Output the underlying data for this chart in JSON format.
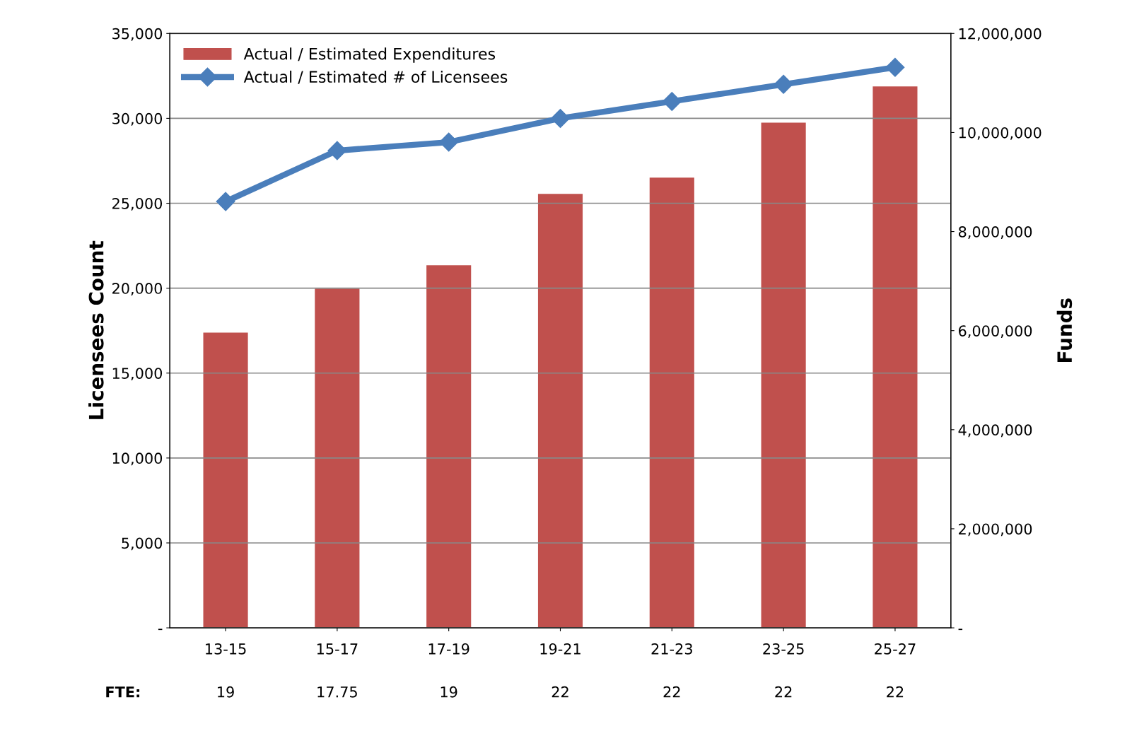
{
  "chart_data": {
    "type": "bar",
    "ylabel": "Licensees Count",
    "y2label": "Funds",
    "categories": [
      "13-15",
      "15-17",
      "17-19",
      "19-21",
      "21-23",
      "23-25",
      "25-27"
    ],
    "series": [
      {
        "name": "Actual / Estimated Expenditures",
        "axis": "y2",
        "color": "#c0504d",
        "values": [
          5960000,
          6850000,
          7320000,
          8760000,
          9090000,
          10200000,
          10930000
        ]
      },
      {
        "name": "Actual / Estimated # of Licensees",
        "type": "line",
        "axis": "y",
        "color": "#4a7ebb",
        "marker": "diamond",
        "values": [
          25100,
          28100,
          28600,
          30000,
          31000,
          32000,
          33000
        ]
      }
    ],
    "ylim": [
      0,
      35000
    ],
    "yticks": [
      {
        "value": 0,
        "label": "-"
      },
      {
        "value": 5000,
        "label": "5,000"
      },
      {
        "value": 10000,
        "label": "10,000"
      },
      {
        "value": 15000,
        "label": "15,000"
      },
      {
        "value": 20000,
        "label": "20,000"
      },
      {
        "value": 25000,
        "label": "25,000"
      },
      {
        "value": 30000,
        "label": "30,000"
      },
      {
        "value": 35000,
        "label": "35,000"
      }
    ],
    "y2lim": [
      0,
      12000000
    ],
    "y2ticks": [
      {
        "value": 0,
        "label": "-"
      },
      {
        "value": 2000000,
        "label": "2,000,000"
      },
      {
        "value": 4000000,
        "label": "4,000,000"
      },
      {
        "value": 6000000,
        "label": "6,000,000"
      },
      {
        "value": 8000000,
        "label": "8,000,000"
      },
      {
        "value": 10000000,
        "label": "10,000,000"
      },
      {
        "value": 12000000,
        "label": "12,000,000"
      }
    ],
    "grid": "y",
    "legend": "top left",
    "annotations": [
      "FTE:",
      "19",
      "17.75",
      "19",
      "22",
      "22",
      "22",
      "22"
    ]
  }
}
